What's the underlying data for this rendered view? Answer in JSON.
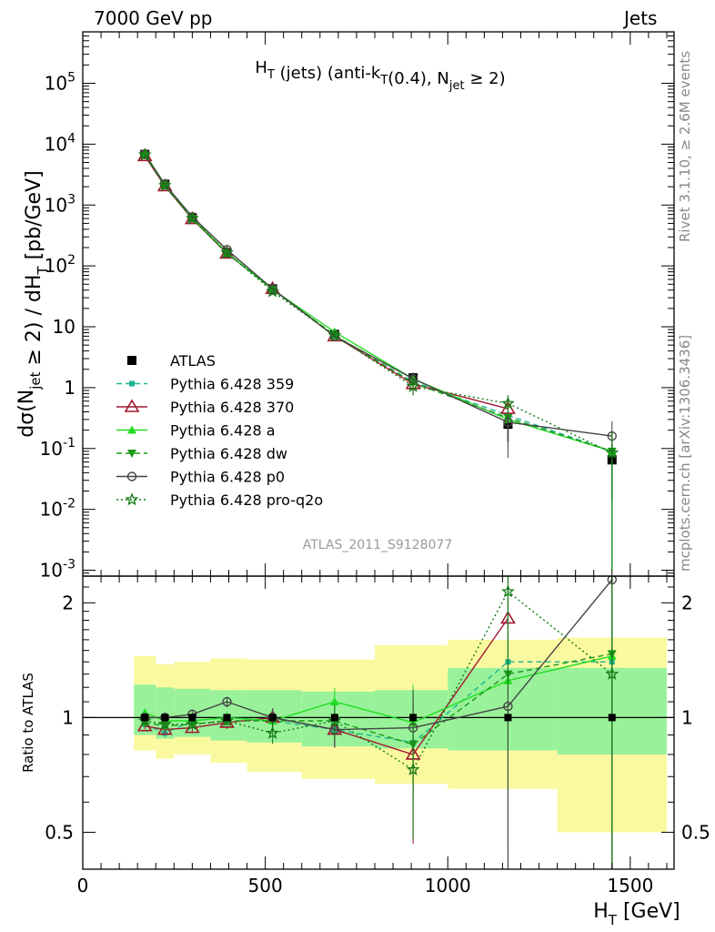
{
  "header": {
    "left": "7000 GeV pp",
    "right": "Jets"
  },
  "side_labels": {
    "rivet": "Rivet 3.1.10, ≥ 2.6M events",
    "mcplots": "mcplots.cern.ch [arXiv:1306.3436]"
  },
  "chart_data": [
    {
      "type": "line",
      "title": "H_T (jets) (anti-k_T(0.4), N_jet ≥ 2)",
      "watermark": "ATLAS_2011_S9128077",
      "ylabel": "dσ(N_jet ≥ 2) / dH_T [pb/GeV]",
      "yscale": "log",
      "ylim": [
        0.0008,
        700000
      ],
      "xlim": [
        0,
        1620
      ],
      "y_ticks": [
        "10^-3",
        "10^-2",
        "10^-1",
        "1",
        "10",
        "10^2",
        "10^3",
        "10^4",
        "10^5"
      ],
      "legend_position": "left-center",
      "series": [
        {
          "name": "ATLAS",
          "color": "#000000",
          "marker": "square",
          "line": "none",
          "x": [
            170,
            225,
            300,
            395,
            520,
            690,
            905,
            1165,
            1450
          ],
          "y": [
            6800,
            2200,
            620,
            165,
            42,
            7.5,
            1.45,
            0.25,
            0.065
          ],
          "err_lo": [
            680,
            220,
            62,
            17,
            4.5,
            1.0,
            0.3,
            0.12,
            0.05
          ],
          "err_hi": [
            680,
            220,
            62,
            17,
            4.5,
            1.0,
            0.3,
            0.12,
            0.05
          ]
        },
        {
          "name": "Pythia 6.428 359",
          "color": "#1fb58f",
          "marker": "small-square",
          "line": "dashed",
          "x": [
            170,
            225,
            300,
            395,
            520,
            690,
            905,
            1165,
            1450
          ],
          "y": [
            6500,
            2000,
            610,
            165,
            41,
            7.0,
            1.25,
            0.35,
            0.09
          ],
          "err_lo": [
            100,
            40,
            15,
            5,
            2,
            0.6,
            0.3,
            0.2,
            0.089
          ],
          "err_hi": [
            100,
            40,
            15,
            5,
            2,
            0.6,
            0.3,
            0.2,
            0.1
          ]
        },
        {
          "name": "Pythia 6.428 370",
          "color": "#a01a30",
          "marker": "open-triangle",
          "line": "solid",
          "x": [
            170,
            225,
            300,
            395,
            520,
            690,
            905,
            1165
          ],
          "y": [
            6400,
            2050,
            590,
            160,
            42,
            7.0,
            1.15,
            0.45
          ],
          "err_lo": [
            100,
            40,
            15,
            5,
            2,
            0.6,
            0.4,
            0.3
          ],
          "err_hi": [
            100,
            40,
            15,
            5,
            2,
            0.6,
            0.4,
            0.3
          ]
        },
        {
          "name": "Pythia 6.428 a",
          "color": "#22dd22",
          "marker": "triangle",
          "line": "solid",
          "x": [
            170,
            225,
            300,
            395,
            520,
            690,
            905,
            1165,
            1450
          ],
          "y": [
            7000,
            2150,
            610,
            165,
            41,
            8.2,
            1.4,
            0.3,
            0.09
          ],
          "err_lo": [
            100,
            40,
            15,
            5,
            2,
            0.6,
            0.3,
            0.2,
            0.089
          ],
          "err_hi": [
            100,
            40,
            15,
            5,
            2,
            0.6,
            0.3,
            0.2,
            0.1
          ]
        },
        {
          "name": "Pythia 6.428 dw",
          "color": "#1a9a1a",
          "marker": "triangle-down",
          "line": "dashed",
          "x": [
            170,
            225,
            300,
            395,
            520,
            690,
            905,
            1165,
            1450
          ],
          "y": [
            6600,
            2100,
            600,
            162,
            41,
            7.3,
            1.2,
            0.32,
            0.09
          ],
          "err_lo": [
            100,
            40,
            15,
            5,
            2,
            0.6,
            0.3,
            0.2,
            0.089
          ],
          "err_hi": [
            100,
            40,
            15,
            5,
            2,
            0.6,
            0.3,
            0.2,
            0.1
          ]
        },
        {
          "name": "Pythia 6.428 p0",
          "color": "#444444",
          "marker": "open-circle",
          "line": "solid",
          "x": [
            170,
            225,
            300,
            395,
            520,
            690,
            905,
            1165,
            1450
          ],
          "y": [
            6900,
            2180,
            640,
            185,
            42,
            7.0,
            1.4,
            0.27,
            0.16
          ],
          "err_lo": [
            100,
            40,
            15,
            5,
            2,
            0.6,
            0.3,
            0.2,
            0.1
          ],
          "err_hi": [
            100,
            40,
            15,
            5,
            2,
            0.6,
            0.3,
            0.2,
            0.12
          ]
        },
        {
          "name": "Pythia 6.428 pro-q2o",
          "color": "#157a15",
          "marker": "open-star",
          "line": "dotted",
          "x": [
            170,
            225,
            300,
            395,
            520,
            690,
            905,
            1165,
            1450
          ],
          "y": [
            6700,
            2100,
            600,
            165,
            38,
            7.2,
            1.05,
            0.55,
            0.085
          ],
          "err_lo": [
            100,
            40,
            15,
            5,
            2,
            0.6,
            0.3,
            0.2,
            0.084
          ],
          "err_hi": [
            100,
            40,
            15,
            5,
            2,
            0.6,
            0.3,
            0.2,
            0.1
          ]
        }
      ]
    },
    {
      "type": "line",
      "ylabel": "Ratio to ATLAS",
      "xlabel": "H_T [GeV]",
      "yscale": "log",
      "ylim": [
        0.4,
        2.35
      ],
      "xlim": [
        0,
        1620
      ],
      "y_ticks": [
        0.5,
        1,
        2
      ],
      "x_ticks": [
        0,
        500,
        1000,
        1500
      ],
      "reference_line": 1,
      "bands": {
        "edges": [
          140,
          200,
          250,
          350,
          450,
          600,
          800,
          1000,
          1300,
          1600
        ],
        "inner_lo": [
          0.9,
          0.88,
          0.89,
          0.87,
          0.86,
          0.84,
          0.83,
          0.82,
          0.8
        ],
        "inner_hi": [
          1.22,
          1.2,
          1.19,
          1.18,
          1.18,
          1.17,
          1.18,
          1.35,
          1.35
        ],
        "outer_lo": [
          0.82,
          0.78,
          0.8,
          0.76,
          0.72,
          0.69,
          0.67,
          0.65,
          0.5
        ],
        "outer_hi": [
          1.45,
          1.38,
          1.4,
          1.43,
          1.42,
          1.42,
          1.55,
          1.6,
          1.62
        ],
        "inner_color": "#99f29a",
        "outer_color": "#fbf9a0"
      },
      "series": [
        {
          "name": "Pythia 6.428 359",
          "x": [
            170,
            225,
            300,
            395,
            520,
            690,
            905,
            1165,
            1450
          ],
          "y": [
            0.96,
            0.91,
            0.98,
            1.0,
            0.98,
            0.93,
            0.86,
            1.4,
            1.4
          ]
        },
        {
          "name": "Pythia 6.428 370",
          "x": [
            170,
            225,
            300,
            395,
            520,
            690,
            905,
            1165
          ],
          "y": [
            0.95,
            0.93,
            0.94,
            0.97,
            1.0,
            0.93,
            0.8,
            1.82
          ]
        },
        {
          "name": "Pythia 6.428 a",
          "x": [
            170,
            225,
            300,
            395,
            520,
            690,
            905,
            1165,
            1450
          ],
          "y": [
            1.03,
            0.98,
            0.98,
            1.0,
            0.98,
            1.1,
            0.97,
            1.25,
            1.45
          ]
        },
        {
          "name": "Pythia 6.428 dw",
          "x": [
            170,
            225,
            300,
            395,
            520,
            690,
            905,
            1165,
            1450
          ],
          "y": [
            0.97,
            0.95,
            0.96,
            0.98,
            0.98,
            0.98,
            0.85,
            1.3,
            1.47
          ]
        },
        {
          "name": "Pythia 6.428 p0",
          "x": [
            170,
            225,
            300,
            395,
            520,
            690,
            905,
            1165,
            1450
          ],
          "y": [
            1.0,
            1.0,
            1.02,
            1.1,
            1.0,
            0.93,
            0.94,
            1.07,
            2.3
          ]
        },
        {
          "name": "Pythia 6.428 pro-q2o",
          "x": [
            170,
            225,
            300,
            395,
            520,
            690,
            905,
            1165,
            1450
          ],
          "y": [
            0.98,
            0.96,
            0.96,
            0.98,
            0.91,
            0.98,
            0.73,
            2.14,
            1.3
          ]
        }
      ]
    }
  ]
}
